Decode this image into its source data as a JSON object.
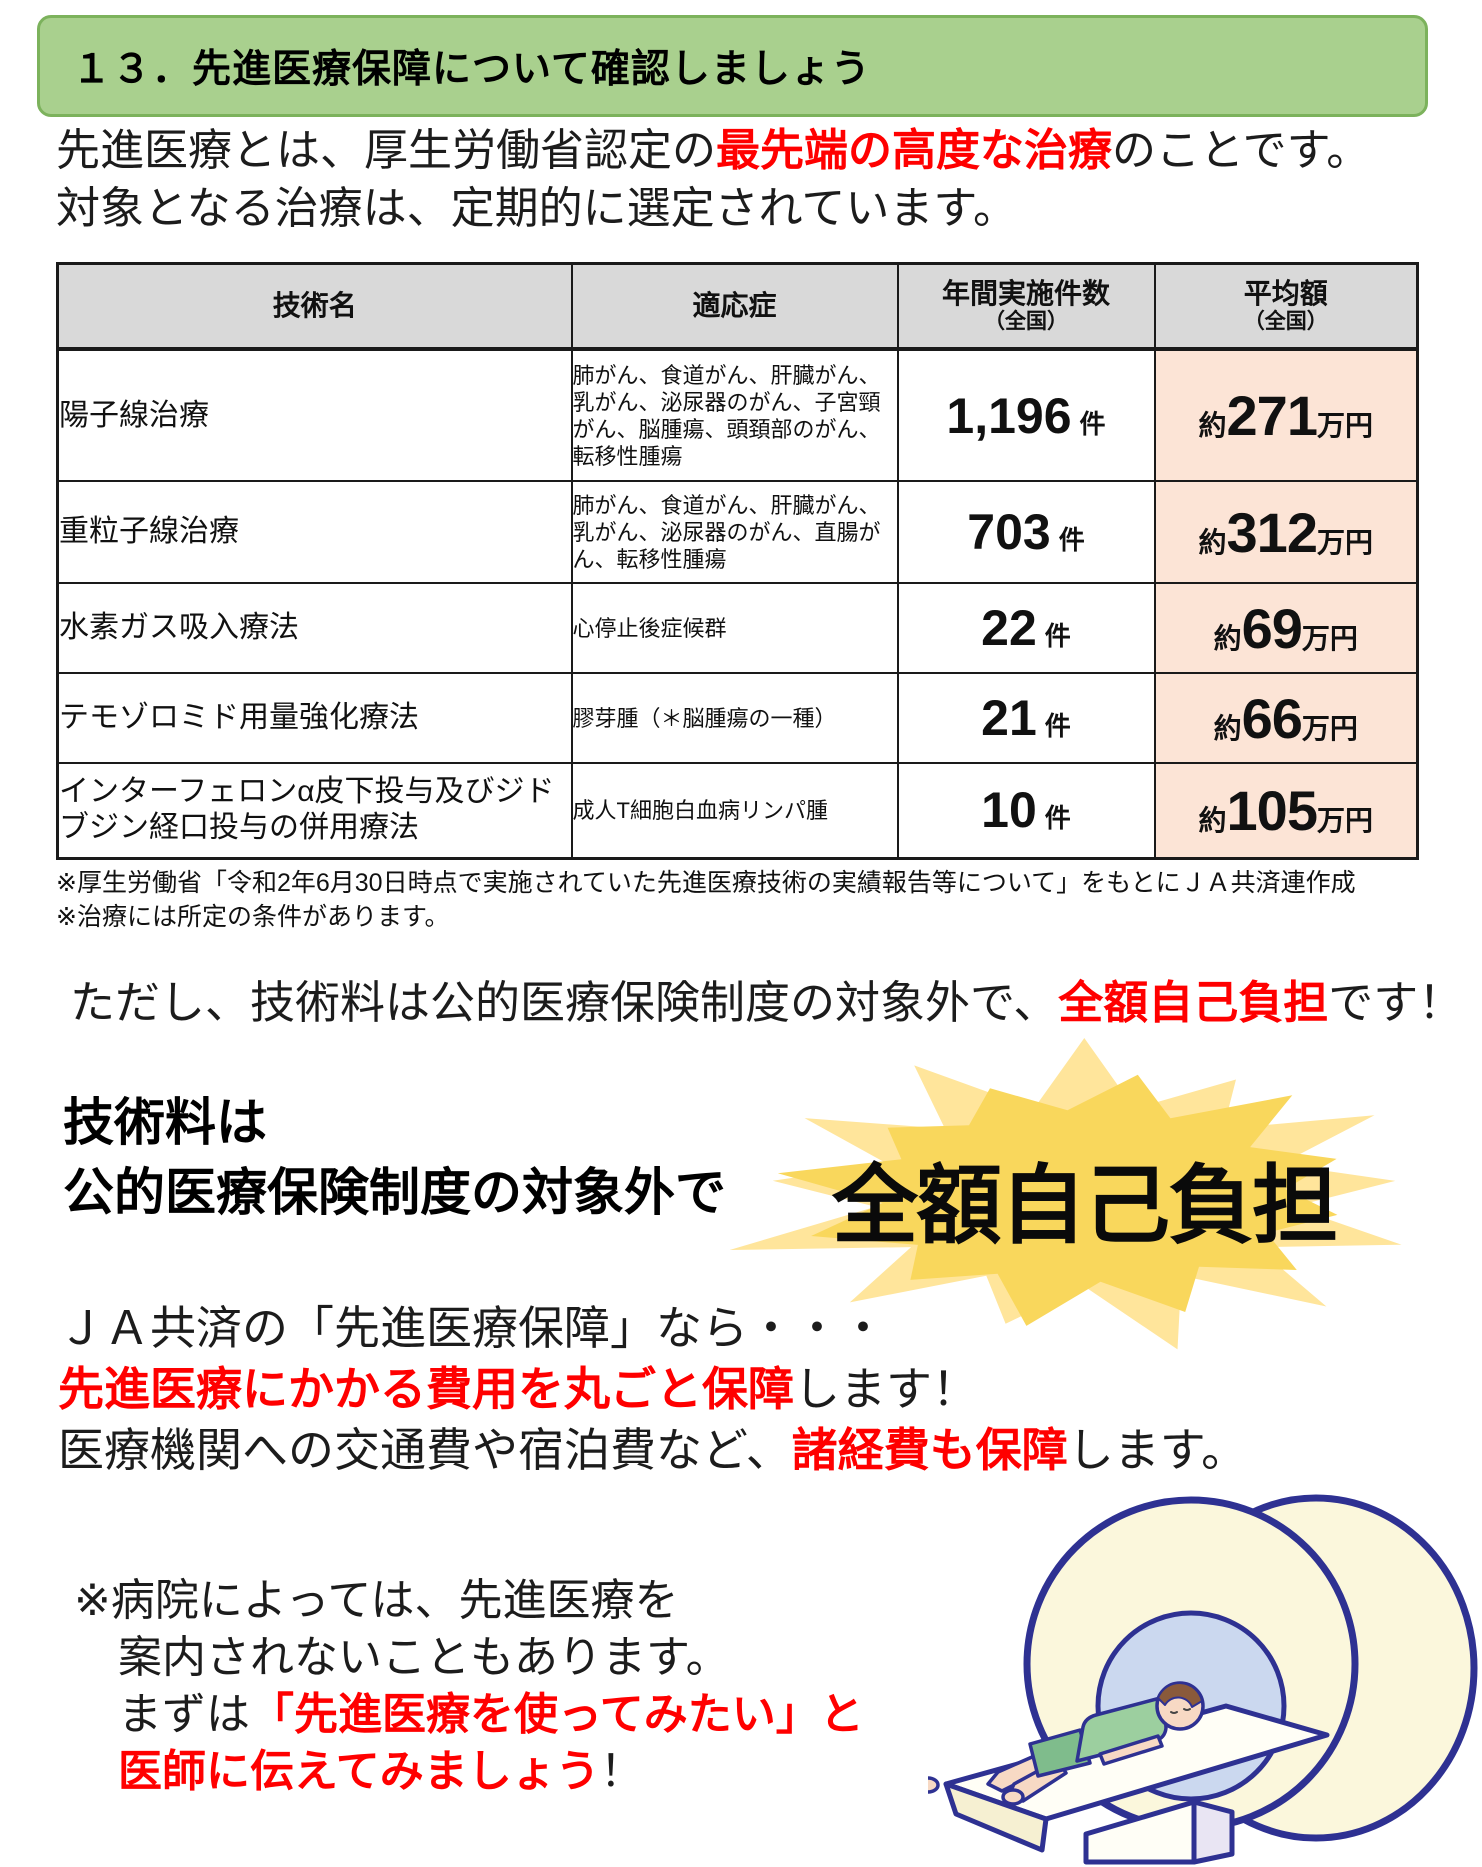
{
  "header": {
    "title": "１３．先進医療保障について確認しましょう"
  },
  "intro": {
    "line1_pre": "先進医療とは、厚生労働省認定の",
    "line1_red": "最先端の高度な治療",
    "line1_post": "のことです。",
    "line2": "対象となる治療は、定期的に選定されています。"
  },
  "table": {
    "headers": {
      "col1": "技術名",
      "col2": "適応症",
      "col3": "年間実施件数",
      "col4": "平均額"
    },
    "national_label": "（全国）",
    "labels": {
      "approx": "約",
      "cases_unit": "件",
      "price_unit": "万円"
    },
    "rows": [
      {
        "name": "陽子線治療",
        "indication": "肺がん、食道がん、肝臓がん、乳がん、泌尿器のがん、子宮頸がん、脳腫瘍、頭頚部のがん、転移性腫瘍",
        "count": "1,196",
        "price": "271"
      },
      {
        "name": "重粒子線治療",
        "indication": "肺がん、食道がん、肝臓がん、乳がん、泌尿器のがん、直腸がん、転移性腫瘍",
        "count": "703",
        "price": "312"
      },
      {
        "name": "水素ガス吸入療法",
        "indication": "心停止後症候群",
        "count": "22",
        "price": "69"
      },
      {
        "name": "テモゾロミド用量強化療法",
        "indication": "膠芽腫（＊脳腫瘍の一種）",
        "count": "21",
        "price": "66"
      },
      {
        "name": "インターフェロンα皮下投与及びジドブジン経口投与の併用療法",
        "indication": "成人T細胞白血病リンパ腫",
        "count": "10",
        "price": "105"
      }
    ]
  },
  "footnotes": {
    "line1": "※厚生労働省「令和2年6月30日時点で実施されていた先進医療技術の実績報告等について」をもとにＪＡ共済連作成",
    "line2": "※治療には所定の条件があります。"
  },
  "caution": {
    "pre": "ただし、技術料は公的医療保険制度の対象外で、",
    "red": "全額自己負担",
    "post": "です！"
  },
  "burst": {
    "left_line1": "技術料は",
    "left_line2": "公的医療保険制度の対象外で",
    "text": "全額自己負担"
  },
  "ja": {
    "line1": "ＪＡ共済の「先進医療保障」なら・・・",
    "line2_red": "先進医療にかかる費用を丸ごと保障",
    "line2_post": "します！",
    "line3_pre": "医療機関への交通費や宿泊費など、",
    "line3_red": "諸経費も保障",
    "line3_post": "します。"
  },
  "note": {
    "line1": "※病院によっては、先進医療を",
    "line2": "案内されないこともあります。",
    "line3_pre": "まずは",
    "line3_red": "「先進医療を使ってみたい」と",
    "line4_red": "医師に伝えてみましょう",
    "line4_post": "！"
  },
  "illustration": {
    "name": "MRIスキャナーと患者のイラスト"
  },
  "colors": {
    "header_green_fill": "#A9D08E",
    "header_green_border": "#7CB25C",
    "table_header_bg": "#D9D9D9",
    "price_cell_bg": "#FCE4D6",
    "emphasis_red": "#FF0000",
    "burst_back_yellow": "#FFE59B",
    "burst_front_yellow": "#F9D75C",
    "illustration_outline_navy": "#2E3192"
  }
}
